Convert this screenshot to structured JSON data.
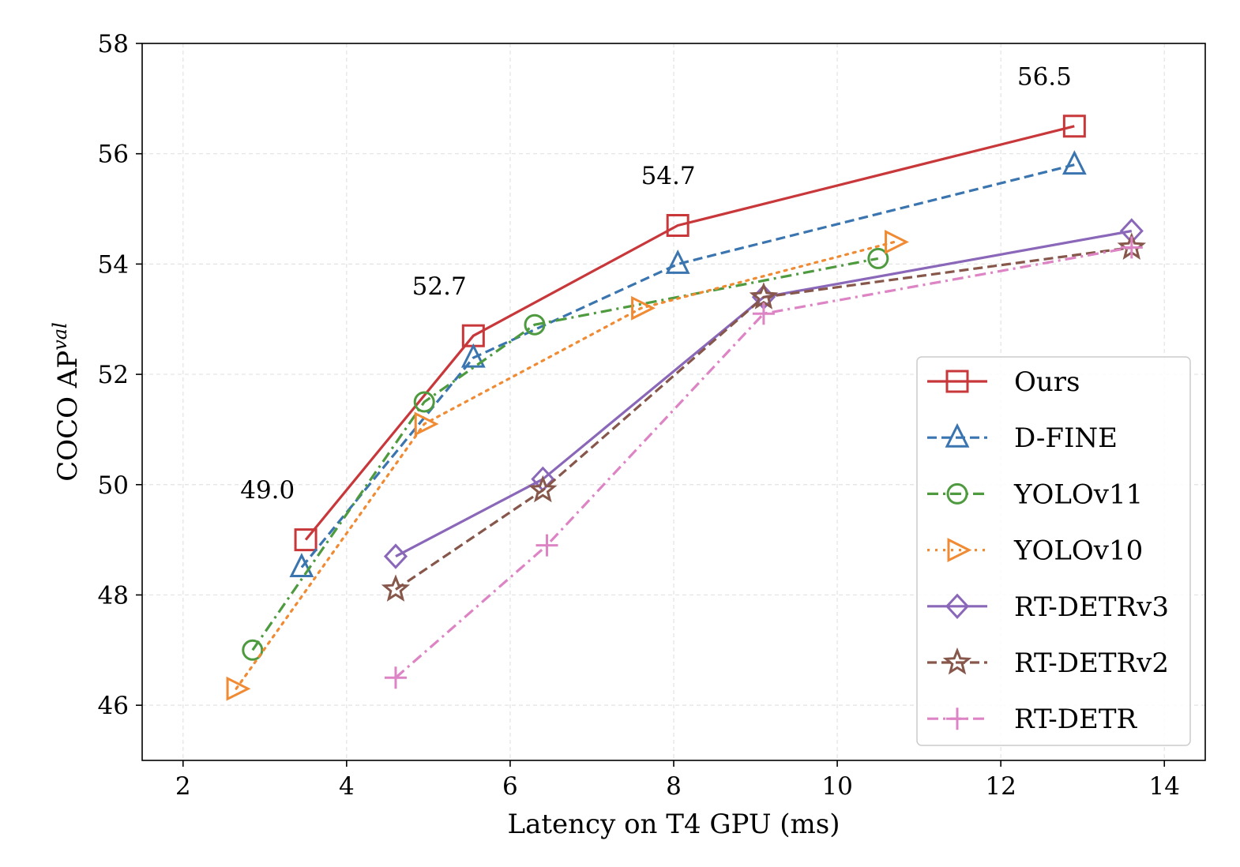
{
  "chart_data": {
    "type": "line",
    "title": "",
    "xlabel": "Latency on T4 GPU (ms)",
    "ylabel_main": "COCO AP",
    "ylabel_sup": "val",
    "xlim": [
      1.5,
      14.5
    ],
    "ylim": [
      45,
      58
    ],
    "xticks": [
      2,
      4,
      6,
      8,
      10,
      12,
      14
    ],
    "yticks": [
      46,
      48,
      50,
      52,
      54,
      56,
      58
    ],
    "grid": true,
    "legend_position": "lower-right",
    "series": [
      {
        "name": "Ours",
        "color": "#c8373a",
        "dash": "solid",
        "marker": "square",
        "x": [
          3.5,
          5.55,
          8.05,
          12.9
        ],
        "y": [
          49.0,
          52.7,
          54.7,
          56.5
        ]
      },
      {
        "name": "D-FINE",
        "color": "#3a75b0",
        "dash": "dashed",
        "marker": "triangle-up",
        "x": [
          3.45,
          5.55,
          8.05,
          12.9
        ],
        "y": [
          48.5,
          52.3,
          54.0,
          55.8
        ]
      },
      {
        "name": "YOLOv11",
        "color": "#4e9a3f",
        "dash": "dashdot",
        "marker": "circle",
        "x": [
          2.85,
          4.95,
          6.3,
          10.5
        ],
        "y": [
          47.0,
          51.5,
          52.9,
          54.1
        ]
      },
      {
        "name": "YOLOv10",
        "color": "#f08a33",
        "dash": "dotted",
        "marker": "triangle-right",
        "x": [
          2.65,
          4.95,
          7.6,
          10.7
        ],
        "y": [
          46.3,
          51.1,
          53.2,
          54.4
        ]
      },
      {
        "name": "RT-DETRv3",
        "color": "#8a67b8",
        "dash": "solid",
        "marker": "diamond",
        "x": [
          4.6,
          6.4,
          9.1,
          13.6
        ],
        "y": [
          48.7,
          50.1,
          53.4,
          54.6
        ]
      },
      {
        "name": "RT-DETRv2",
        "color": "#86574a",
        "dash": "dashed",
        "marker": "star",
        "x": [
          4.6,
          6.4,
          9.1,
          13.6
        ],
        "y": [
          48.1,
          49.9,
          53.4,
          54.3
        ]
      },
      {
        "name": "RT-DETR",
        "color": "#dd84c5",
        "dash": "dashdot",
        "marker": "plus",
        "x": [
          4.6,
          6.45,
          9.1,
          13.6
        ],
        "y": [
          46.5,
          48.9,
          53.1,
          54.3
        ]
      }
    ],
    "annotations": [
      {
        "text": "49.0",
        "x": 2.7,
        "y": 49.75
      },
      {
        "text": "52.7",
        "x": 4.8,
        "y": 53.45
      },
      {
        "text": "54.7",
        "x": 7.6,
        "y": 55.45
      },
      {
        "text": "56.5",
        "x": 12.2,
        "y": 57.25
      }
    ]
  }
}
